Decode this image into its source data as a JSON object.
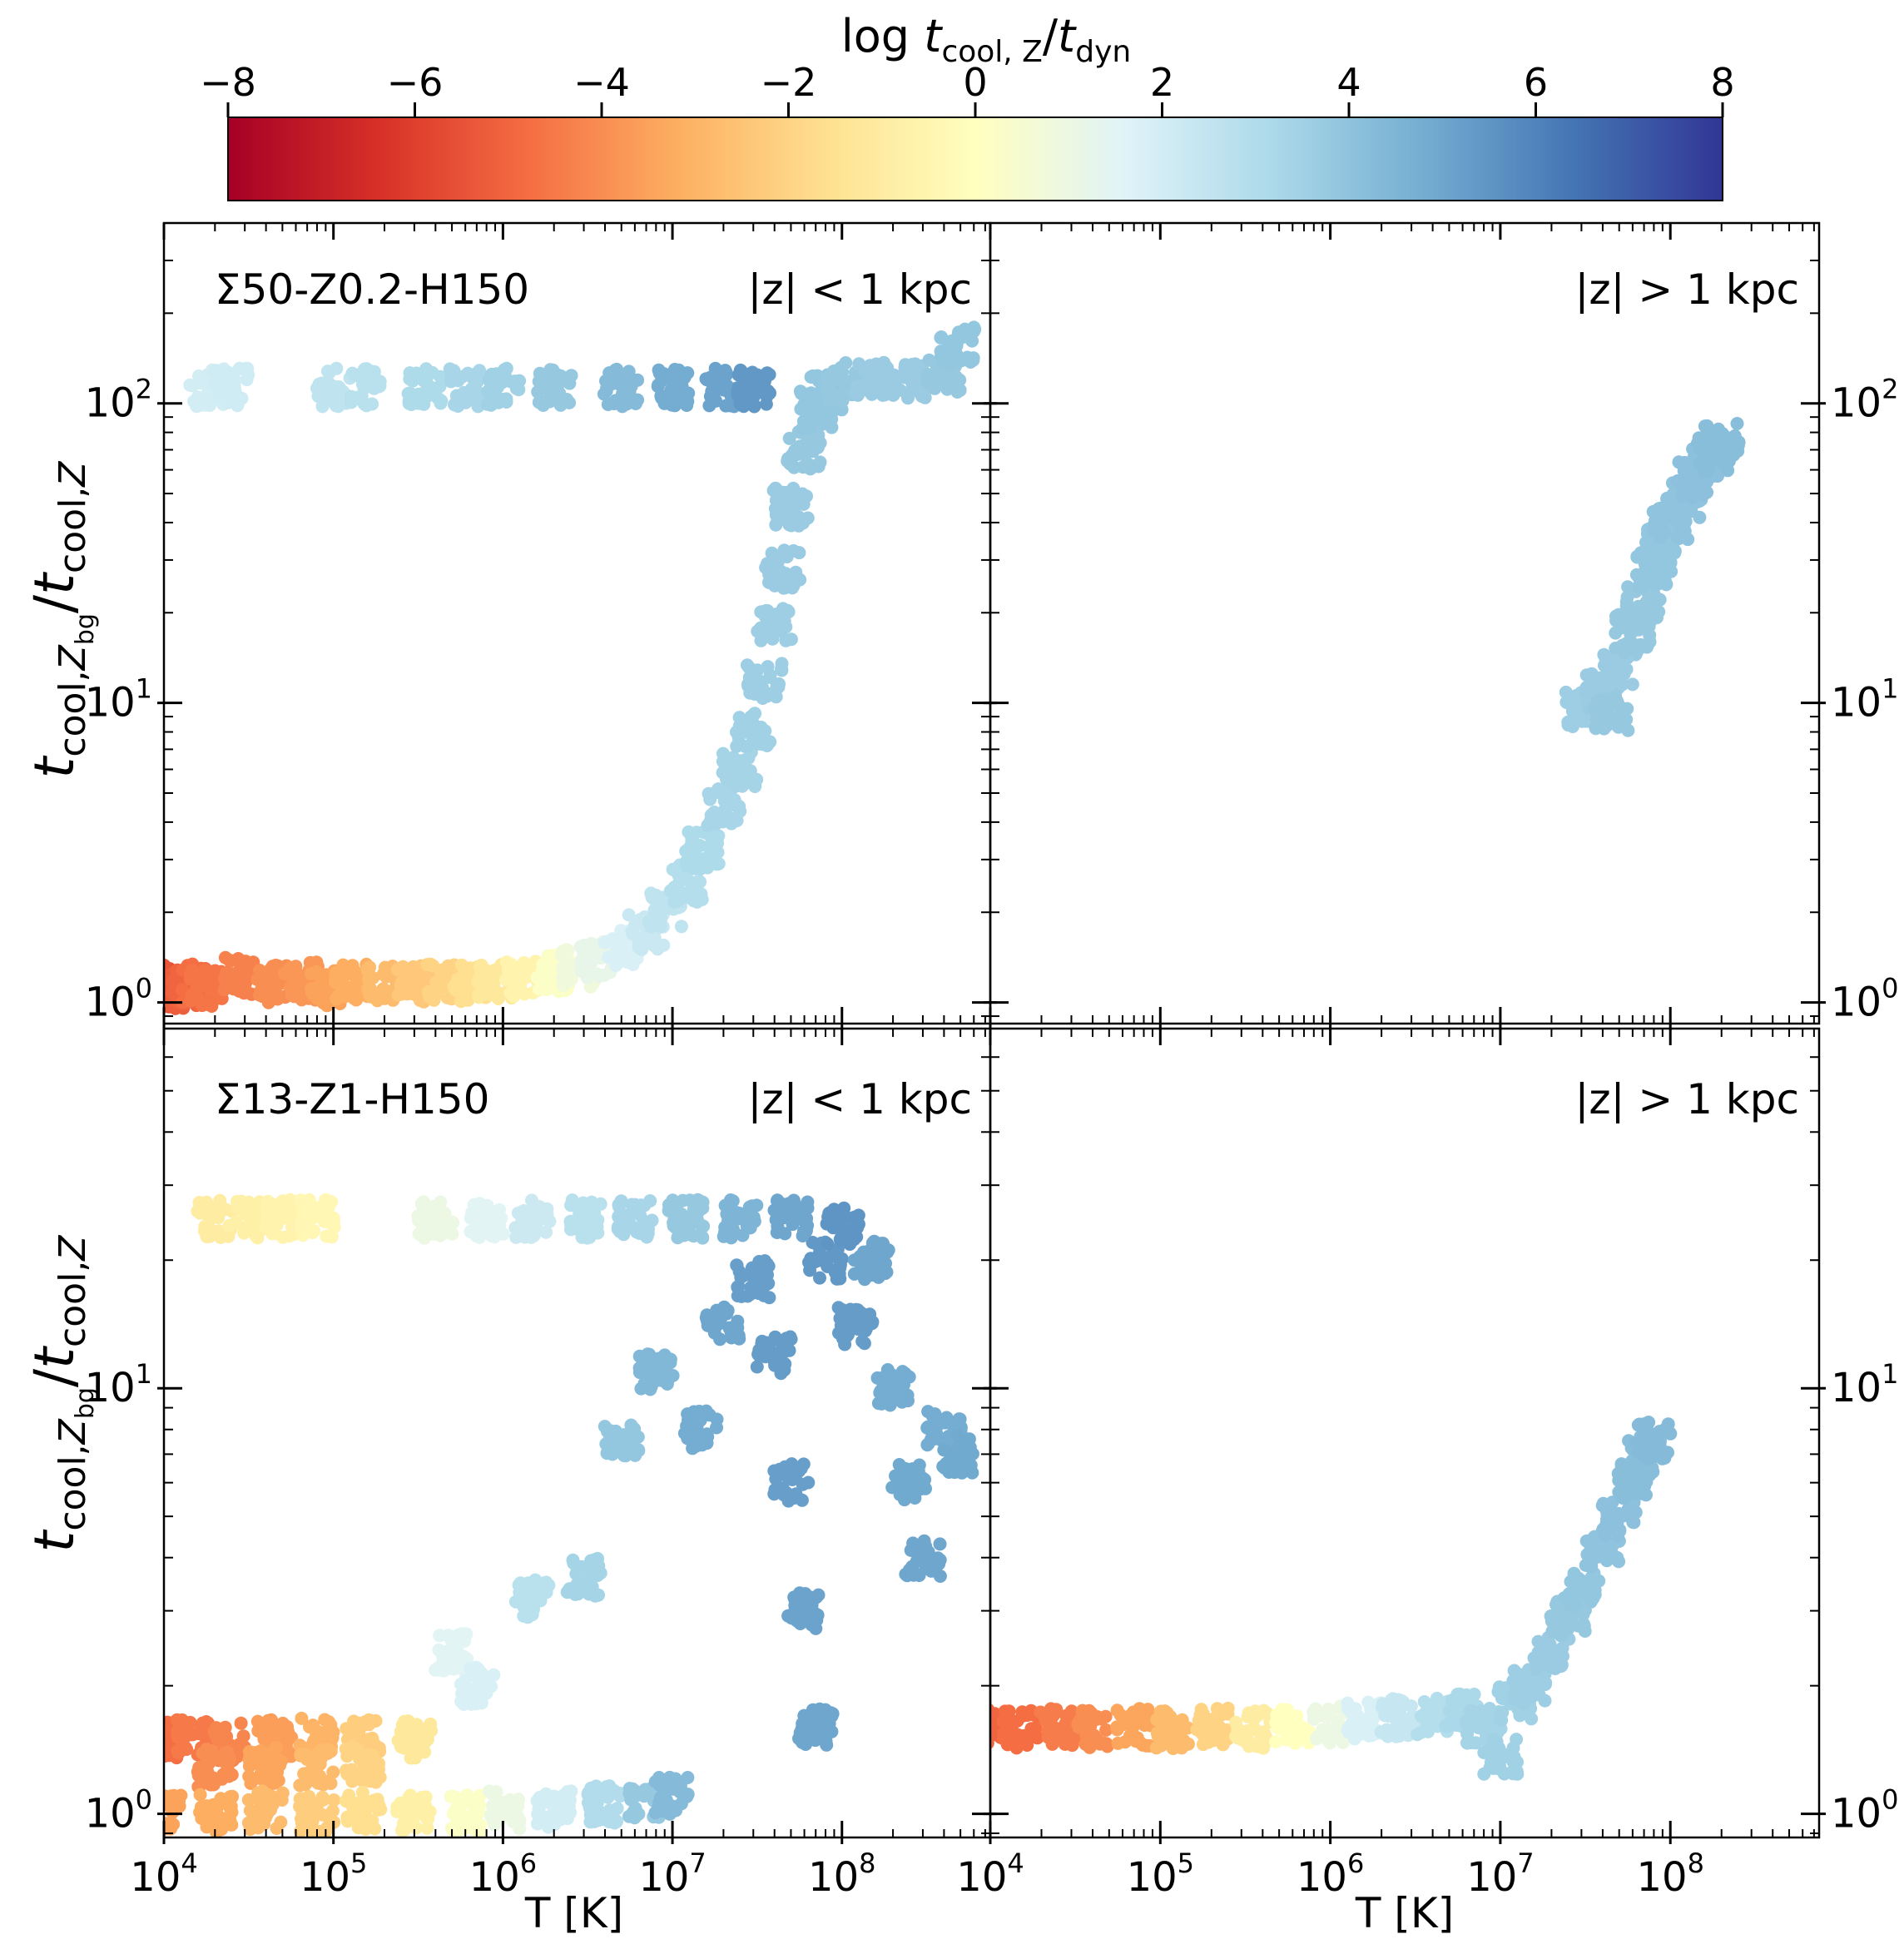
{
  "figure": {
    "colorbar_label": "log t_cool,Z / t_dyn",
    "xlabel": "T [K]",
    "ylabel": "t_cool,Z_bg / t_cool,Z"
  },
  "chart_data": [
    {
      "type": "scatter",
      "panel": "top-left",
      "title": "Σ50-Z0.2-H150",
      "annotation": "|z| < 1 kpc",
      "xlabel": "",
      "ylabel": "t_cool,Z_bg / t_cool,Z",
      "xscale": "log",
      "yscale": "log",
      "xlim": [
        10000,
        750000000
      ],
      "ylim": [
        0.85,
        400
      ],
      "ytick_labels": [
        "10^0",
        "10^1",
        "10^2"
      ],
      "color_by": "log t_cool,Z / t_dyn",
      "points": [
        [
          10000,
          1.12,
          -5.5
        ],
        [
          11000,
          1.15,
          -5.4
        ],
        [
          12500,
          1.1,
          -5.2
        ],
        [
          14000,
          1.13,
          -5.0
        ],
        [
          16000,
          1.16,
          -4.8
        ],
        [
          18000,
          1.12,
          -4.6
        ],
        [
          27000,
          1.22,
          -4.3
        ],
        [
          45000,
          1.15,
          -4.0
        ],
        [
          65000,
          1.18,
          -3.8
        ],
        [
          90000,
          1.12,
          -3.5
        ],
        [
          130000,
          1.16,
          -3.2
        ],
        [
          200000,
          1.14,
          -2.8
        ],
        [
          300000,
          1.15,
          -2.4
        ],
        [
          450000,
          1.17,
          -2.0
        ],
        [
          650000,
          1.15,
          -1.6
        ],
        [
          900000,
          1.18,
          -1.2
        ],
        [
          1300000,
          1.2,
          -0.6
        ],
        [
          2000000,
          1.25,
          0.2
        ],
        [
          2800000,
          1.3,
          0.8
        ],
        [
          3500000,
          1.4,
          1.2
        ],
        [
          5000000,
          1.5,
          1.8
        ],
        [
          7000000,
          1.7,
          2.3
        ],
        [
          9000000,
          2.0,
          2.6
        ],
        [
          12000000,
          2.5,
          2.9
        ],
        [
          15000000,
          3.2,
          3.1
        ],
        [
          20000000,
          4.5,
          3.3
        ],
        [
          25000000,
          6.0,
          3.4
        ],
        [
          30000000,
          8.0,
          3.5
        ],
        [
          35000000,
          12.0,
          3.6
        ],
        [
          40000000,
          18.0,
          3.6
        ],
        [
          45000000,
          28.0,
          3.7
        ],
        [
          50000000,
          45.0,
          3.7
        ],
        [
          60000000,
          70.0,
          3.8
        ],
        [
          70000000,
          95.0,
          3.9
        ],
        [
          80000000,
          110.0,
          3.9
        ],
        [
          100000000,
          118.0,
          3.8
        ],
        [
          150000000,
          120.0,
          3.7
        ],
        [
          250000000,
          120.0,
          3.7
        ],
        [
          400000000,
          125.0,
          3.8
        ],
        [
          480000000,
          155.0,
          3.9
        ],
        [
          18000,
          113.0,
          2.0
        ],
        [
          25000,
          113.0,
          2.1
        ],
        [
          100000,
          113.0,
          2.6
        ],
        [
          150000,
          113.0,
          2.8
        ],
        [
          350000,
          113.0,
          3.1
        ],
        [
          600000,
          113.0,
          3.3
        ],
        [
          1000000,
          113.0,
          3.5
        ],
        [
          2000000,
          113.0,
          3.8
        ],
        [
          5000000,
          113.0,
          4.3
        ],
        [
          10000000,
          113.0,
          4.8
        ],
        [
          20000000,
          113.0,
          5.1
        ],
        [
          30000000,
          113.0,
          5.4
        ]
      ]
    },
    {
      "type": "scatter",
      "panel": "top-right",
      "title": "",
      "annotation": "|z| > 1 kpc",
      "xscale": "log",
      "yscale": "log",
      "xlim": [
        10000,
        750000000
      ],
      "ylim": [
        0.85,
        400
      ],
      "ytick_labels": [
        "10^0",
        "10^1",
        "10^2"
      ],
      "color_by": "log t_cool,Z / t_dyn",
      "points": [
        [
          30000000,
          9.5,
          3.6
        ],
        [
          35000000,
          10.0,
          3.6
        ],
        [
          40000000,
          11.0,
          3.7
        ],
        [
          45000000,
          9.2,
          3.8
        ],
        [
          50000000,
          13.0,
          3.7
        ],
        [
          60000000,
          17.0,
          3.8
        ],
        [
          70000000,
          22.0,
          3.8
        ],
        [
          80000000,
          28.0,
          3.9
        ],
        [
          90000000,
          34.0,
          3.9
        ],
        [
          100000000,
          40.0,
          4.0
        ],
        [
          120000000,
          48.0,
          4.0
        ],
        [
          140000000,
          55.0,
          4.1
        ],
        [
          160000000,
          62.0,
          4.1
        ],
        [
          180000000,
          68.0,
          4.2
        ],
        [
          200000000,
          74.0,
          4.2
        ]
      ]
    },
    {
      "type": "scatter",
      "panel": "bottom-left",
      "title": "Σ13-Z1-H150",
      "annotation": "|z| < 1 kpc",
      "xlabel": "T [K]",
      "ylabel": "t_cool,Z_bg / t_cool,Z",
      "xscale": "log",
      "yscale": "log",
      "xlim": [
        10000,
        750000000
      ],
      "ylim": [
        0.88,
        70
      ],
      "xtick_labels": [
        "10^4",
        "10^5",
        "10^6",
        "10^7",
        "10^8"
      ],
      "ytick_labels": [
        "10^0",
        "10^1"
      ],
      "color_by": "log t_cool,Z / t_dyn",
      "points": [
        [
          10000,
          1.5,
          -4.8
        ],
        [
          15000,
          1.5,
          -4.5
        ],
        [
          25000,
          1.48,
          -4.2
        ],
        [
          45000,
          1.5,
          -3.6
        ],
        [
          80000,
          1.52,
          -3.0
        ],
        [
          150000,
          1.5,
          -2.2
        ],
        [
          300000,
          1.5,
          -1.2
        ],
        [
          20000,
          1.28,
          -4.0
        ],
        [
          40000,
          1.3,
          -3.4
        ],
        [
          80000,
          1.28,
          -2.8
        ],
        [
          150000,
          1.3,
          -2.0
        ],
        [
          10000,
          1.02,
          -3.5
        ],
        [
          20000,
          1.0,
          -3.2
        ],
        [
          40000,
          1.02,
          -2.8
        ],
        [
          80000,
          1.0,
          -2.2
        ],
        [
          150000,
          1.02,
          -1.6
        ],
        [
          300000,
          1.0,
          -0.8
        ],
        [
          600000,
          1.01,
          0.2
        ],
        [
          1000000,
          1.02,
          1.0
        ],
        [
          2000000,
          1.03,
          2.0
        ],
        [
          4000000,
          1.05,
          3.0
        ],
        [
          7000000,
          1.08,
          3.8
        ],
        [
          10000000,
          1.1,
          4.3
        ],
        [
          500000,
          2.4,
          1.5
        ],
        [
          700000,
          2.0,
          1.8
        ],
        [
          1500000,
          3.2,
          2.8
        ],
        [
          3000000,
          3.6,
          3.4
        ],
        [
          5000000,
          7.5,
          3.9
        ],
        [
          8000000,
          11.0,
          4.4
        ],
        [
          15000000,
          8.0,
          4.8
        ],
        [
          20000000,
          14.0,
          5.0
        ],
        [
          30000000,
          18.0,
          5.2
        ],
        [
          40000000,
          12.0,
          5.3
        ],
        [
          50000000,
          6.0,
          5.2
        ],
        [
          60000000,
          3.0,
          5.1
        ],
        [
          70000000,
          1.6,
          5.0
        ],
        [
          80000000,
          20.0,
          5.4
        ],
        [
          100000000,
          24.0,
          5.5
        ],
        [
          120000000,
          14.0,
          5.3
        ],
        [
          150000000,
          20.0,
          5.0
        ],
        [
          200000000,
          10.0,
          4.8
        ],
        [
          250000000,
          6.0,
          4.9
        ],
        [
          300000000,
          4.0,
          5.0
        ],
        [
          400000000,
          8.0,
          4.8
        ],
        [
          500000000,
          7.0,
          4.9
        ],
        [
          20000,
          25.0,
          -1.0
        ],
        [
          30000,
          25.0,
          -0.8
        ],
        [
          50000,
          25.0,
          -0.6
        ],
        [
          80000,
          25.0,
          -0.4
        ],
        [
          400000,
          25.0,
          1.0
        ],
        [
          800000,
          25.0,
          1.5
        ],
        [
          1500000,
          25.0,
          2.2
        ],
        [
          3000000,
          25.0,
          2.8
        ],
        [
          6000000,
          25.0,
          3.3
        ],
        [
          12000000,
          25.0,
          3.8
        ],
        [
          25000000,
          25.0,
          4.5
        ],
        [
          50000000,
          25.0,
          5.0
        ]
      ]
    },
    {
      "type": "scatter",
      "panel": "bottom-right",
      "title": "",
      "annotation": "|z| > 1 kpc",
      "xlabel": "T [K]",
      "xscale": "log",
      "yscale": "log",
      "xlim": [
        10000,
        750000000
      ],
      "ylim": [
        0.88,
        70
      ],
      "xtick_labels": [
        "10^4",
        "10^5",
        "10^6",
        "10^7",
        "10^8"
      ],
      "ytick_labels": [
        "10^0",
        "10^1"
      ],
      "color_by": "log t_cool,Z / t_dyn",
      "points": [
        [
          10000,
          1.6,
          -5.0
        ],
        [
          15000,
          1.58,
          -4.8
        ],
        [
          25000,
          1.6,
          -4.4
        ],
        [
          40000,
          1.58,
          -4.0
        ],
        [
          70000,
          1.6,
          -3.4
        ],
        [
          120000,
          1.58,
          -2.8
        ],
        [
          200000,
          1.6,
          -2.0
        ],
        [
          350000,
          1.58,
          -1.0
        ],
        [
          600000,
          1.6,
          0.0
        ],
        [
          1000000,
          1.62,
          1.0
        ],
        [
          1600000,
          1.65,
          1.8
        ],
        [
          2500000,
          1.68,
          2.4
        ],
        [
          4000000,
          1.7,
          2.9
        ],
        [
          6000000,
          1.75,
          3.2
        ],
        [
          8000000,
          1.6,
          3.4
        ],
        [
          10000000,
          1.35,
          3.5
        ],
        [
          12000000,
          1.8,
          3.5
        ],
        [
          15000000,
          2.0,
          3.6
        ],
        [
          20000000,
          2.4,
          3.7
        ],
        [
          25000000,
          2.9,
          3.8
        ],
        [
          30000000,
          3.4,
          3.9
        ],
        [
          40000000,
          4.2,
          4.0
        ],
        [
          50000000,
          5.0,
          4.1
        ],
        [
          60000000,
          6.0,
          4.2
        ],
        [
          70000000,
          7.0,
          4.2
        ],
        [
          80000000,
          7.5,
          4.3
        ]
      ]
    }
  ],
  "colorbar": {
    "min": -8,
    "max": 8,
    "ticks": [
      -8,
      -6,
      -4,
      -2,
      0,
      2,
      4,
      6,
      8
    ],
    "tick_labels": [
      "−8",
      "−6",
      "−4",
      "−2",
      "0",
      "2",
      "4",
      "6",
      "8"
    ],
    "colormap": "RdYlBu",
    "colors": [
      "#a50026",
      "#d73027",
      "#f46d43",
      "#fdae61",
      "#fee090",
      "#ffffbf",
      "#e0f3f8",
      "#abd9e9",
      "#74add1",
      "#4575b4",
      "#313695"
    ]
  },
  "labels": {
    "top_left_title": "Σ50-Z0.2-H150",
    "bottom_left_title": "Σ13-Z1-H150",
    "z_inner": "|z| < 1 kpc",
    "z_outer": "|z| > 1 kpc",
    "x_axis": "T [K]",
    "cbar_log": "log ",
    "cbar_t1": "t",
    "cbar_sub1": "cool, Z",
    "cbar_slash": "/",
    "cbar_t2": "t",
    "cbar_sub2": "dyn",
    "y_t1": "t",
    "y_sub1": "cool,",
    "y_Z": "Z",
    "y_bg": "bg",
    "y_slash": "/",
    "y_t2": "t",
    "y_sub2": "cool,",
    "y_Z2": "Z",
    "tick_base": "10"
  }
}
